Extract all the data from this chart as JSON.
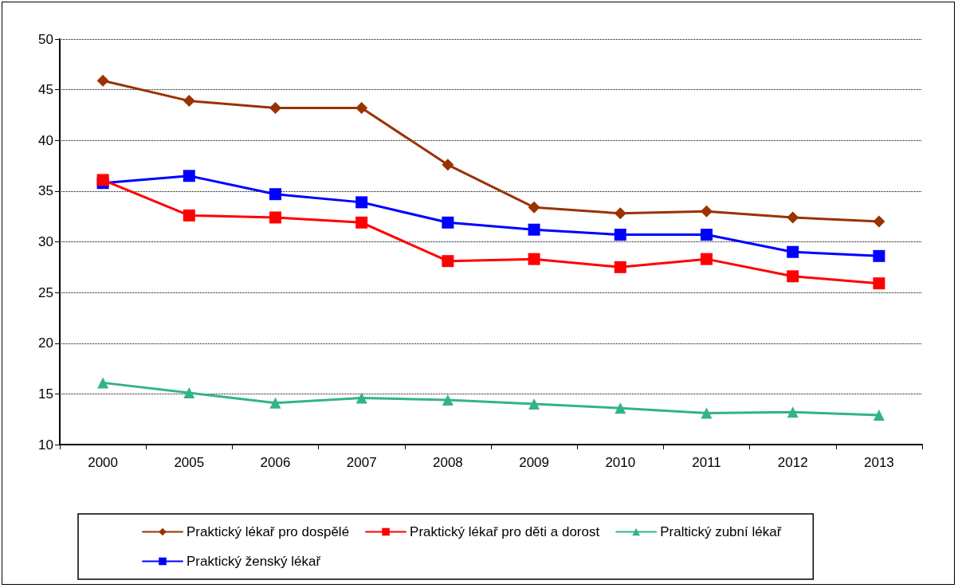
{
  "chart_data": {
    "type": "line",
    "categories": [
      "2000",
      "2005",
      "2006",
      "2007",
      "2008",
      "2009",
      "2010",
      "2011",
      "2012",
      "2013"
    ],
    "series": [
      {
        "name": "Praktický lékař pro dospělé",
        "color": "#993300",
        "marker": "diamond",
        "values": [
          45.9,
          43.9,
          43.2,
          43.2,
          37.6,
          33.4,
          32.8,
          33.0,
          32.4,
          32.0
        ]
      },
      {
        "name": "Praktický lékař pro děti a dorost",
        "color": "#ff0000",
        "marker": "square",
        "values": [
          36.1,
          32.6,
          32.4,
          31.9,
          28.1,
          28.3,
          27.5,
          28.3,
          26.6,
          25.9
        ]
      },
      {
        "name": "Praltický zubní lékař",
        "color": "#33b38a",
        "marker": "triangle",
        "values": [
          16.1,
          15.1,
          14.1,
          14.6,
          14.4,
          14.0,
          13.6,
          13.1,
          13.2,
          12.9
        ]
      },
      {
        "name": "Praktický ženský lékař",
        "color": "#0000ff",
        "marker": "square",
        "values": [
          35.8,
          36.5,
          34.7,
          33.9,
          31.9,
          31.2,
          30.7,
          30.7,
          29.0,
          28.6
        ]
      }
    ],
    "ylim": [
      10,
      50
    ],
    "yticks": [
      10,
      15,
      20,
      25,
      30,
      35,
      40,
      45,
      50
    ],
    "grid": "y",
    "legend": "bottom",
    "line_style": "solid"
  }
}
